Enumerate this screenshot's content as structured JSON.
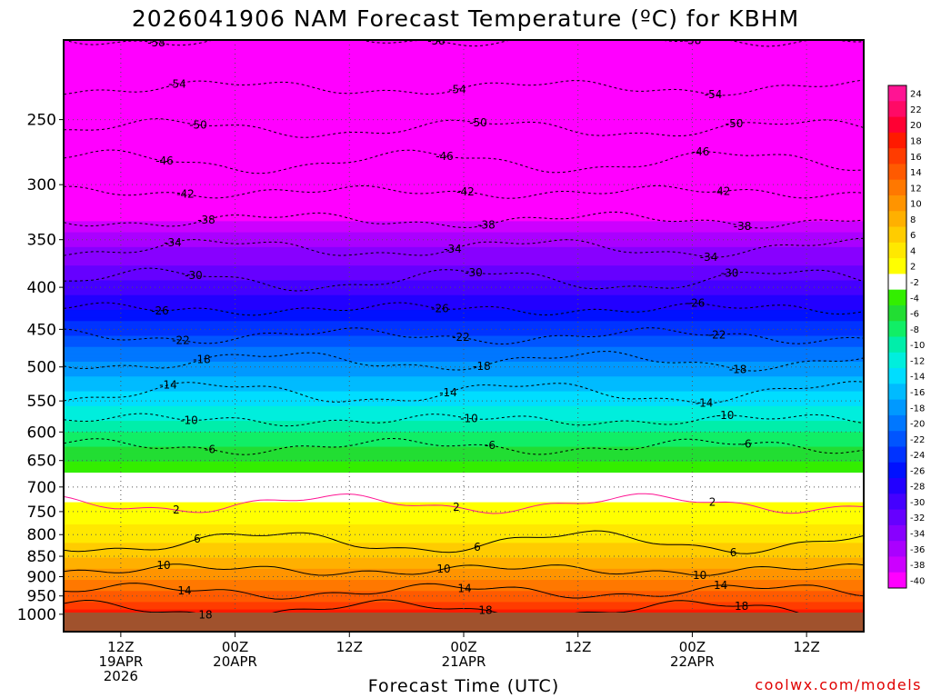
{
  "chart_data": {
    "type": "heatmap",
    "title": "2026041906 NAM Forecast Temperature (ºC) for KBHM",
    "xlabel": "Forecast Time (UTC)",
    "credit": "coolwx.com/models",
    "ylabel": "",
    "y_axis": {
      "type": "log",
      "reversed": true,
      "ylim": [
        200,
        1050
      ],
      "ticks": [
        250,
        300,
        350,
        400,
        450,
        500,
        550,
        600,
        650,
        700,
        750,
        800,
        850,
        900,
        950,
        1000
      ],
      "tick_labels": [
        "250",
        "300",
        "350",
        "400",
        "450",
        "500",
        "550",
        "600",
        "650",
        "700",
        "750",
        "800",
        "850",
        "900",
        "950",
        "1000"
      ]
    },
    "x_axis": {
      "xlim_hours": [
        6,
        90
      ],
      "ticks": [
        {
          "hour": 12,
          "lines": [
            "12Z",
            "19APR",
            "2026"
          ]
        },
        {
          "hour": 24,
          "lines": [
            "00Z",
            "20APR"
          ]
        },
        {
          "hour": 36,
          "lines": [
            "12Z"
          ]
        },
        {
          "hour": 48,
          "lines": [
            "00Z",
            "21APR"
          ]
        },
        {
          "hour": 60,
          "lines": [
            "12Z"
          ]
        },
        {
          "hour": 72,
          "lines": [
            "00Z",
            "22APR"
          ]
        },
        {
          "hour": 84,
          "lines": [
            "12Z"
          ]
        }
      ]
    },
    "grid": true,
    "legend": "right",
    "colorbar": {
      "levels": [
        24,
        22,
        20,
        18,
        16,
        14,
        12,
        10,
        8,
        6,
        4,
        2,
        -2,
        -4,
        -6,
        -8,
        -10,
        -12,
        -14,
        -16,
        -18,
        -20,
        -22,
        -24,
        -26,
        -28,
        -30,
        -32,
        -34,
        -36,
        -38,
        -40
      ],
      "colors": [
        "#ff1493",
        "#ff0a66",
        "#ff0033",
        "#ff1a00",
        "#ff3c00",
        "#ff5a00",
        "#ff7800",
        "#ff9400",
        "#ffb000",
        "#ffcc00",
        "#ffe800",
        "#ffff00",
        "#ffffff",
        "#33ee00",
        "#22dd33",
        "#11ee66",
        "#00eeaa",
        "#00eedd",
        "#00ddff",
        "#00bbff",
        "#0099ff",
        "#0077ff",
        "#0055ff",
        "#0033ff",
        "#0011ff",
        "#2200ff",
        "#4400ff",
        "#6600ff",
        "#8800ff",
        "#aa00ff",
        "#cc00ff",
        "#ff00ff"
      ]
    },
    "contour_labels": [
      "-58",
      "-54",
      "-50",
      "-46",
      "-42",
      "-38",
      "-34",
      "-30",
      "-26",
      "-22",
      "-18",
      "-14",
      "-10",
      "-6",
      "2",
      "6",
      "10",
      "14",
      "18"
    ],
    "temperature_profile": {
      "pressure": [
        200,
        250,
        300,
        350,
        400,
        450,
        500,
        550,
        600,
        650,
        700,
        750,
        800,
        850,
        900,
        950,
        1000
      ],
      "temp_c": [
        -58,
        -51,
        -43,
        -35,
        -29,
        -23,
        -17,
        -13,
        -8,
        -4,
        0,
        3,
        5,
        8,
        11,
        15,
        19
      ]
    }
  }
}
